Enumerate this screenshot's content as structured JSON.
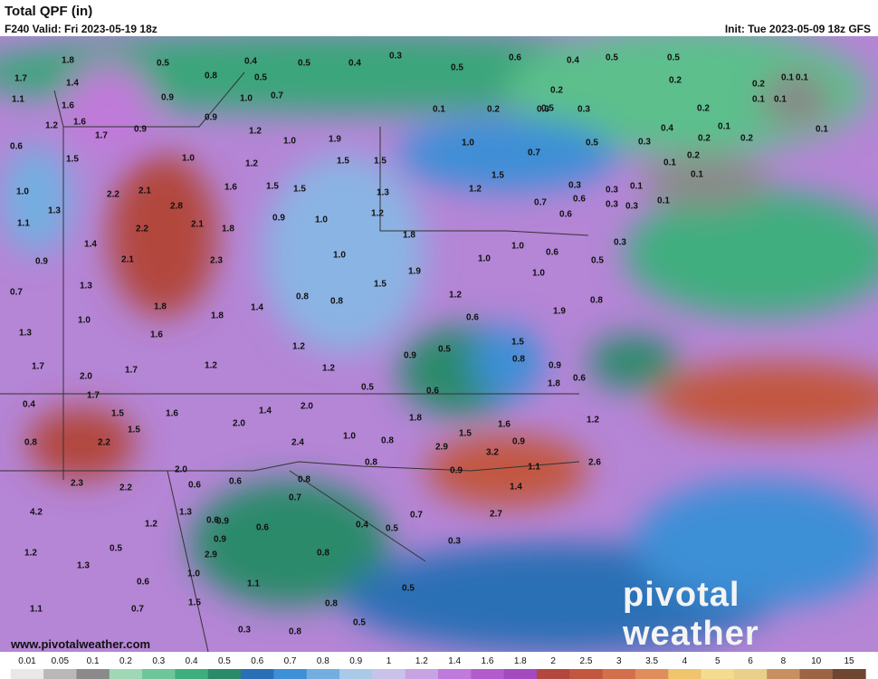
{
  "header": {
    "title": "Total QPF (in)",
    "valid": "F240 Valid: Fri 2023-05-19 18z",
    "init": "Init: Tue 2023-05-09 18z GFS"
  },
  "map": {
    "labels": [
      "1.7",
      "1.8",
      "1.4",
      "1.1",
      "1.6",
      "1.2",
      "1.6",
      "0.6",
      "1.5",
      "1.7",
      "0.9",
      "0.5",
      "0.8",
      "0.4",
      "0.5",
      "0.5",
      "0.4",
      "0.3",
      "0.9",
      "1.0",
      "0.7",
      "0.9",
      "1.2",
      "1.0",
      "1.9",
      "1.0",
      "1.2",
      "1.5",
      "1.5",
      "1.0",
      "0.7",
      "0.5",
      "0.3",
      "0.4",
      "1.0",
      "1.3",
      "1.1",
      "2.2",
      "2.1",
      "2.8",
      "2.2",
      "2.1",
      "1.8",
      "1.6",
      "1.5",
      "1.5",
      "0.9",
      "1.0",
      "1.2",
      "1.3",
      "1.2",
      "1.5",
      "0.7",
      "0.6",
      "0.6",
      "0.3",
      "0.3",
      "0.9",
      "1.4",
      "0.7",
      "1.3",
      "2.1",
      "2.3",
      "1.0",
      "1.8",
      "1.9",
      "1.5",
      "1.0",
      "1.0",
      "0.6",
      "1.0",
      "0.5",
      "0.3",
      "1.0",
      "1.3",
      "1.8",
      "1.6",
      "1.8",
      "1.4",
      "0.8",
      "0.8",
      "1.2",
      "0.6",
      "0.8",
      "1.9",
      "1.7",
      "2.0",
      "1.7",
      "1.2",
      "1.2",
      "1.2",
      "0.9",
      "0.5",
      "1.5",
      "0.8",
      "0.9",
      "0.6",
      "0.5",
      "1.8",
      "0.4",
      "1.7",
      "1.5",
      "1.5",
      "1.6",
      "2.0",
      "1.4",
      "2.0",
      "1.8",
      "1.6",
      "1.2",
      "0.8",
      "2.2",
      "2.4",
      "1.0",
      "0.8",
      "2.9",
      "1.5",
      "0.9",
      "3.2",
      "2.0",
      "0.6",
      "0.6",
      "0.8",
      "0.8",
      "0.9",
      "1.1",
      "2.6",
      "2.3",
      "2.2",
      "1.4",
      "4.2",
      "1.3",
      "0.9",
      "0.7",
      "0.4",
      "0.5",
      "0.7",
      "2.7",
      "1.2",
      "0.9",
      "0.6",
      "0.6",
      "0.5",
      "2.9",
      "0.8",
      "0.3",
      "1.2",
      "1.3",
      "1.0",
      "1.1",
      "0.5",
      "0.6",
      "1.5",
      "1.1",
      "0.7",
      "0.8",
      "0.3",
      "0.8",
      "0.5",
      "0.6",
      "0.5",
      "0.6",
      "0.4",
      "0.5",
      "0.5",
      "0.2",
      "0.1",
      "0.2",
      "0.3",
      "0.3",
      "0.2",
      "0.2",
      "0.5",
      "0.2",
      "0.1",
      "0.1",
      "0.1",
      "0.1",
      "0.1",
      "0.2",
      "0.2",
      "0.1",
      "0.2",
      "0.1",
      "0.1",
      "0.1",
      "0.1",
      "0.3",
      "0.3"
    ]
  },
  "colorbar": {
    "labels": [
      "0.01",
      "0.05",
      "0.1",
      "0.2",
      "0.3",
      "0.4",
      "0.5",
      "0.6",
      "0.7",
      "0.8",
      "0.9",
      "1",
      "1.2",
      "1.4",
      "1.6",
      "1.8",
      "2",
      "2.5",
      "3",
      "3.5",
      "4",
      "5",
      "6",
      "8",
      "10",
      "15"
    ],
    "colors": [
      "#e8e8e8",
      "#b8b8b8",
      "#8a8a8a",
      "#9fd8b4",
      "#6cc69a",
      "#3fae7f",
      "#2a8a6a",
      "#2a6fb5",
      "#3d8fd6",
      "#74aee0",
      "#a9cbe9",
      "#c9c3ea",
      "#c7a3e3",
      "#c07ad9",
      "#b25ccc",
      "#a24abe",
      "#b2473d",
      "#c2573f",
      "#d2704e",
      "#e08d5c",
      "#f0c36d",
      "#f4dc8f",
      "#e9d08a",
      "#c89060",
      "#9c6443",
      "#6e4632"
    ]
  },
  "footer": {
    "website": "www.pivotalweather.com",
    "logo": "pivotal weather"
  }
}
